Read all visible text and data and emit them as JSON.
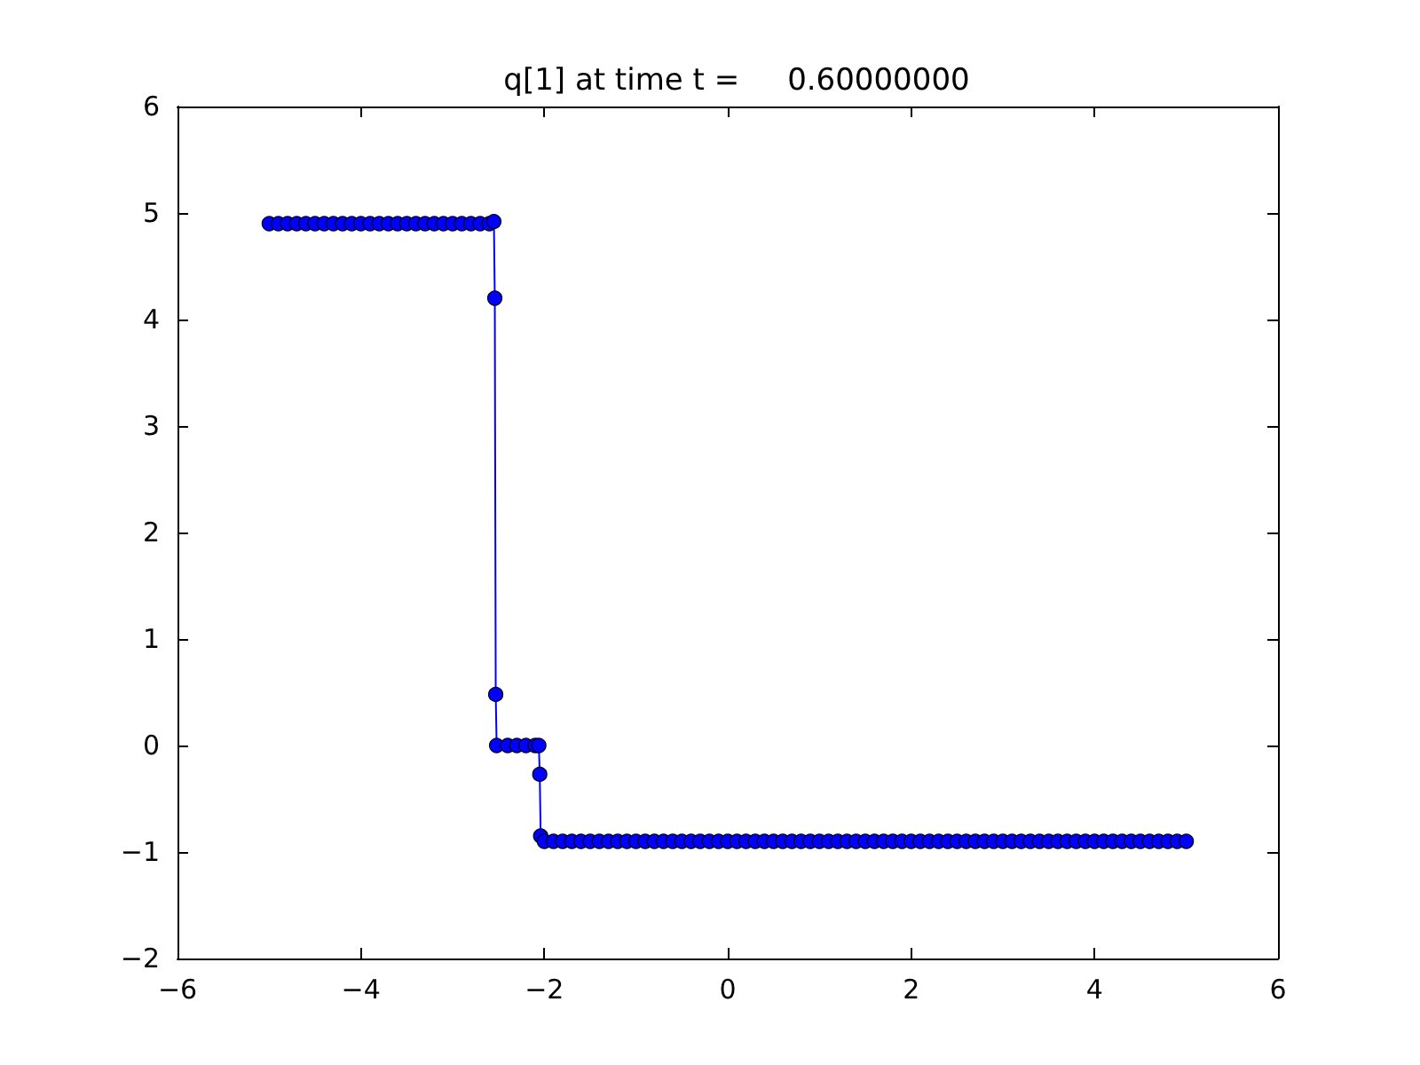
{
  "chart_data": {
    "type": "line",
    "title": "q[1] at time t =     0.60000000",
    "marker": "circle",
    "line_style": "solid",
    "grid": false,
    "xlim": [
      -6,
      6
    ],
    "xticks": [
      -6,
      -4,
      -2,
      0,
      2,
      4,
      6
    ],
    "ylim": [
      -2,
      6
    ],
    "yticks": [
      -2,
      -1,
      0,
      1,
      2,
      3,
      4,
      5,
      6
    ],
    "series": [
      {
        "color": "#0000ff",
        "x": [
          -5,
          -4.9,
          -4.8,
          -4.7,
          -4.6,
          -4.5,
          -4.4,
          -4.3,
          -4.2,
          -4.1,
          -4,
          -3.9,
          -3.8,
          -3.7,
          -3.6,
          -3.5,
          -3.4,
          -3.3,
          -3.2,
          -3.1,
          -3,
          -2.9,
          -2.8,
          -2.7,
          -2.6,
          -2.55,
          -2.54,
          -2.53,
          -2.52,
          -2.4,
          -2.3,
          -2.2,
          -2.1,
          -2.06,
          -2.05,
          -2.04,
          -2,
          -1.9,
          -1.8,
          -1.7,
          -1.6,
          -1.5,
          -1.4,
          -1.3,
          -1.2,
          -1.1,
          -1,
          -0.9,
          -0.8,
          -0.7,
          -0.6,
          -0.5,
          -0.4,
          -0.3,
          -0.2,
          -0.1,
          0,
          0.1,
          0.2,
          0.3,
          0.4,
          0.5,
          0.6,
          0.7,
          0.8,
          0.9,
          1,
          1.1,
          1.2,
          1.3,
          1.4,
          1.5,
          1.6,
          1.7,
          1.8,
          1.9,
          2,
          2.1,
          2.2,
          2.3,
          2.4,
          2.5,
          2.6,
          2.7,
          2.8,
          2.9,
          3,
          3.1,
          3.2,
          3.3,
          3.4,
          3.5,
          3.6,
          3.7,
          3.8,
          3.9,
          4,
          4.1,
          4.2,
          4.3,
          4.4,
          4.5,
          4.6,
          4.7,
          4.8,
          4.9,
          5
        ],
        "values": [
          4.9,
          4.9,
          4.9,
          4.9,
          4.9,
          4.9,
          4.9,
          4.9,
          4.9,
          4.9,
          4.9,
          4.9,
          4.9,
          4.9,
          4.9,
          4.9,
          4.9,
          4.9,
          4.9,
          4.9,
          4.9,
          4.9,
          4.9,
          4.9,
          4.9,
          4.92,
          4.2,
          0.48,
          0,
          0,
          0,
          0,
          0,
          0,
          -0.27,
          -0.85,
          -0.9,
          -0.9,
          -0.9,
          -0.9,
          -0.9,
          -0.9,
          -0.9,
          -0.9,
          -0.9,
          -0.9,
          -0.9,
          -0.9,
          -0.9,
          -0.9,
          -0.9,
          -0.9,
          -0.9,
          -0.9,
          -0.9,
          -0.9,
          -0.9,
          -0.9,
          -0.9,
          -0.9,
          -0.9,
          -0.9,
          -0.9,
          -0.9,
          -0.9,
          -0.9,
          -0.9,
          -0.9,
          -0.9,
          -0.9,
          -0.9,
          -0.9,
          -0.9,
          -0.9,
          -0.9,
          -0.9,
          -0.9,
          -0.9,
          -0.9,
          -0.9,
          -0.9,
          -0.9,
          -0.9,
          -0.9,
          -0.9,
          -0.9,
          -0.9,
          -0.9,
          -0.9,
          -0.9,
          -0.9,
          -0.9,
          -0.9,
          -0.9,
          -0.9,
          -0.9,
          -0.9,
          -0.9,
          -0.9,
          -0.9,
          -0.9,
          -0.9,
          -0.9,
          -0.9,
          -0.9,
          -0.9,
          -0.9
        ]
      }
    ]
  }
}
